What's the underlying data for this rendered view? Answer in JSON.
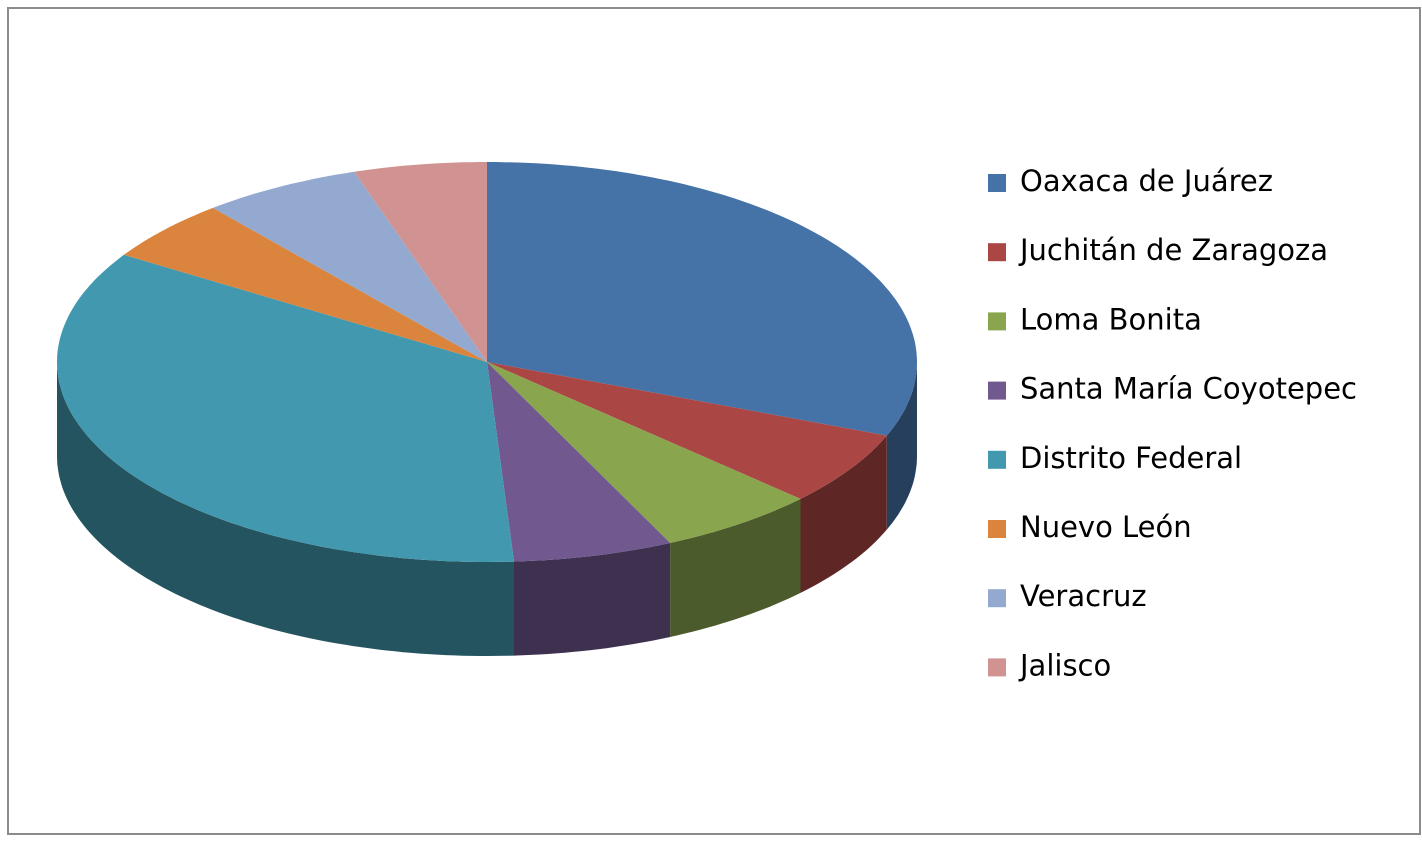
{
  "chart_data": {
    "type": "pie",
    "categories": [
      "Oaxaca de Juárez",
      "Juchitán de Zaragoza",
      "Loma Bonita",
      "Santa María Coyotepec",
      "Distrito Federal",
      "Nuevo León",
      "Veracruz",
      "Jalisco"
    ],
    "values": [
      31,
      6,
      6,
      6,
      35,
      5,
      6,
      5
    ],
    "colors": [
      "#4572a7",
      "#aa4643",
      "#89a54e",
      "#71588f",
      "#4198af",
      "#db843d",
      "#93a9cf",
      "#d19392"
    ],
    "legend": "right"
  }
}
